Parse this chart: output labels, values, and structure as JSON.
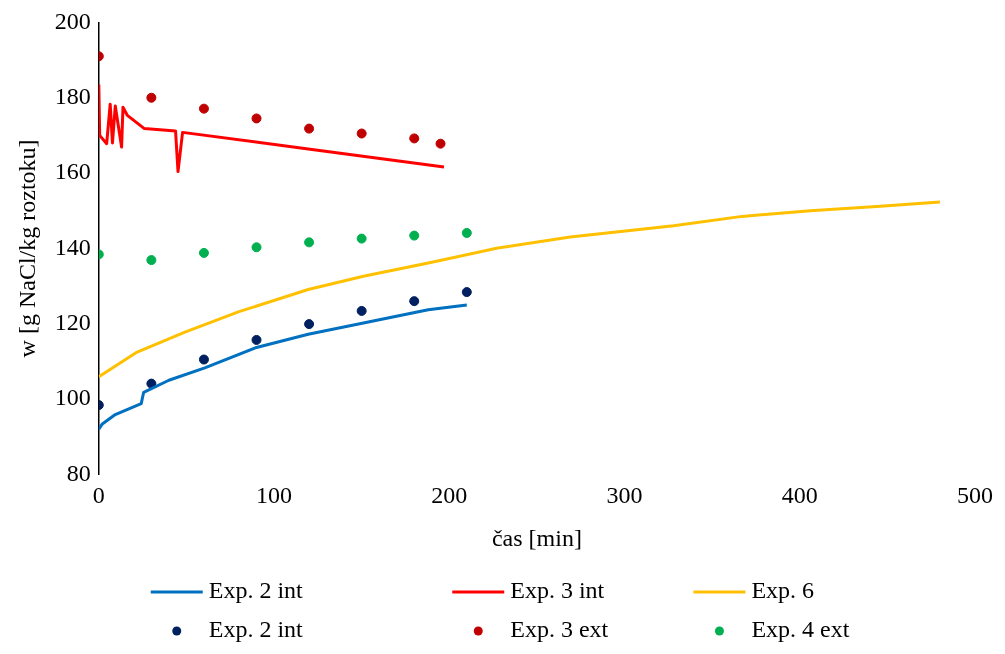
{
  "chart_data": {
    "type": "line",
    "xlabel": "čas [min]",
    "ylabel": "w [g NaCl/kg roztoku]",
    "xlim": [
      0,
      500
    ],
    "xticks": [
      0,
      100,
      200,
      300,
      400,
      500
    ],
    "ylim": [
      80,
      200
    ],
    "yticks": [
      80,
      100,
      120,
      140,
      160,
      180,
      200
    ],
    "grid": false,
    "legend": "bottom",
    "series": [
      {
        "name": "Exp. 2 int",
        "marker": "none",
        "color": "#0070c0",
        "x": [
          0,
          2,
          9.4,
          24.2,
          25.6,
          40,
          60.5,
          90,
          119.5,
          151,
          188,
          210
        ],
        "values": [
          92,
          93.4,
          95.9,
          98.8,
          101.8,
          105,
          108.3,
          113.7,
          117.2,
          120.2,
          123.7,
          125
        ]
      },
      {
        "name": "Exp. 3 int",
        "marker": "none",
        "color": "#ff0000",
        "x": [
          0,
          0.5,
          4.5,
          6.5,
          7.8,
          9.4,
          13,
          13.8,
          16.3,
          26,
          43.8,
          45.2,
          47.8,
          119.5,
          197
        ],
        "values": [
          183.5,
          170,
          167.8,
          178.3,
          168,
          177.8,
          166.9,
          177.5,
          175.3,
          171.8,
          171.2,
          160.4,
          170.8,
          166.4,
          161.6
        ]
      },
      {
        "name": "Exp. 6",
        "marker": "none",
        "color": "#ffc000",
        "x": [
          0,
          21.2,
          48.8,
          80,
          119.5,
          151,
          188,
          227.6,
          269,
          328,
          367,
          406,
          446,
          480
        ],
        "values": [
          105.9,
          112.3,
          117.7,
          123.2,
          129.1,
          132.6,
          136.1,
          140.1,
          143,
          146,
          148.5,
          150,
          151.2,
          152.3
        ]
      },
      {
        "name": "Exp. 2 int",
        "type": "scatter",
        "marker": "circle",
        "color": "#002060",
        "x": [
          0,
          30,
          60,
          90,
          120,
          150,
          180,
          210
        ],
        "values": [
          98.4,
          104.1,
          110.5,
          115.7,
          119.9,
          123.4,
          126,
          128.4
        ]
      },
      {
        "name": "Exp. 3 ext",
        "type": "scatter",
        "marker": "circle",
        "color": "#c00000",
        "x": [
          0,
          30,
          60,
          90,
          120,
          150,
          180,
          195
        ],
        "values": [
          191,
          180,
          177.1,
          174.5,
          171.8,
          170.5,
          169.2,
          167.8
        ]
      },
      {
        "name": "Exp. 4 ext",
        "type": "scatter",
        "marker": "circle",
        "color": "#00b050",
        "x": [
          0,
          30,
          60,
          90,
          120,
          150,
          180,
          210
        ],
        "values": [
          138.4,
          136.9,
          138.8,
          140.3,
          141.6,
          142.6,
          143.4,
          144.1
        ]
      }
    ]
  }
}
